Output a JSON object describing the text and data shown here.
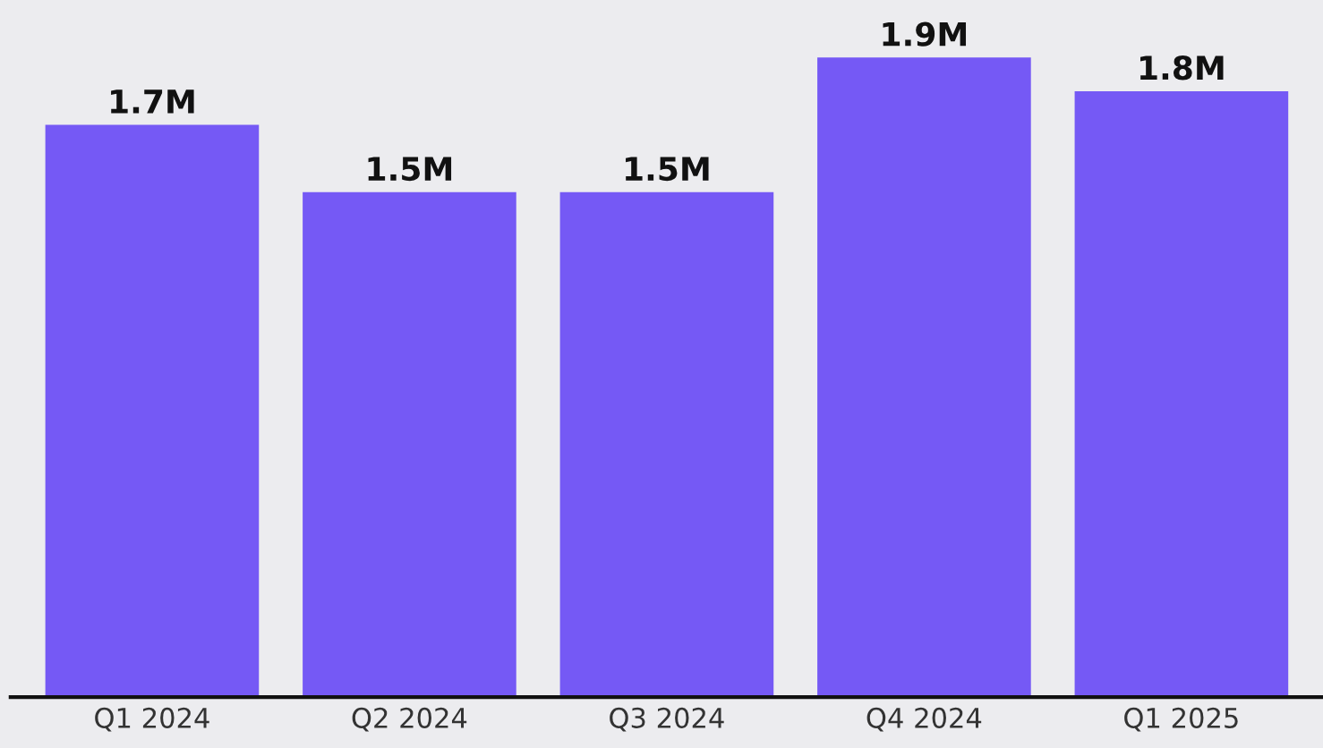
{
  "chart_data": {
    "type": "bar",
    "categories": [
      "Q1 2024",
      "Q2 2024",
      "Q3 2024",
      "Q4 2024",
      "Q1 2025"
    ],
    "values": [
      1.7,
      1.5,
      1.5,
      1.9,
      1.8
    ],
    "value_labels": [
      "1.7M",
      "1.5M",
      "1.5M",
      "1.9M",
      "1.8M"
    ],
    "color": "#7559f5"
  }
}
